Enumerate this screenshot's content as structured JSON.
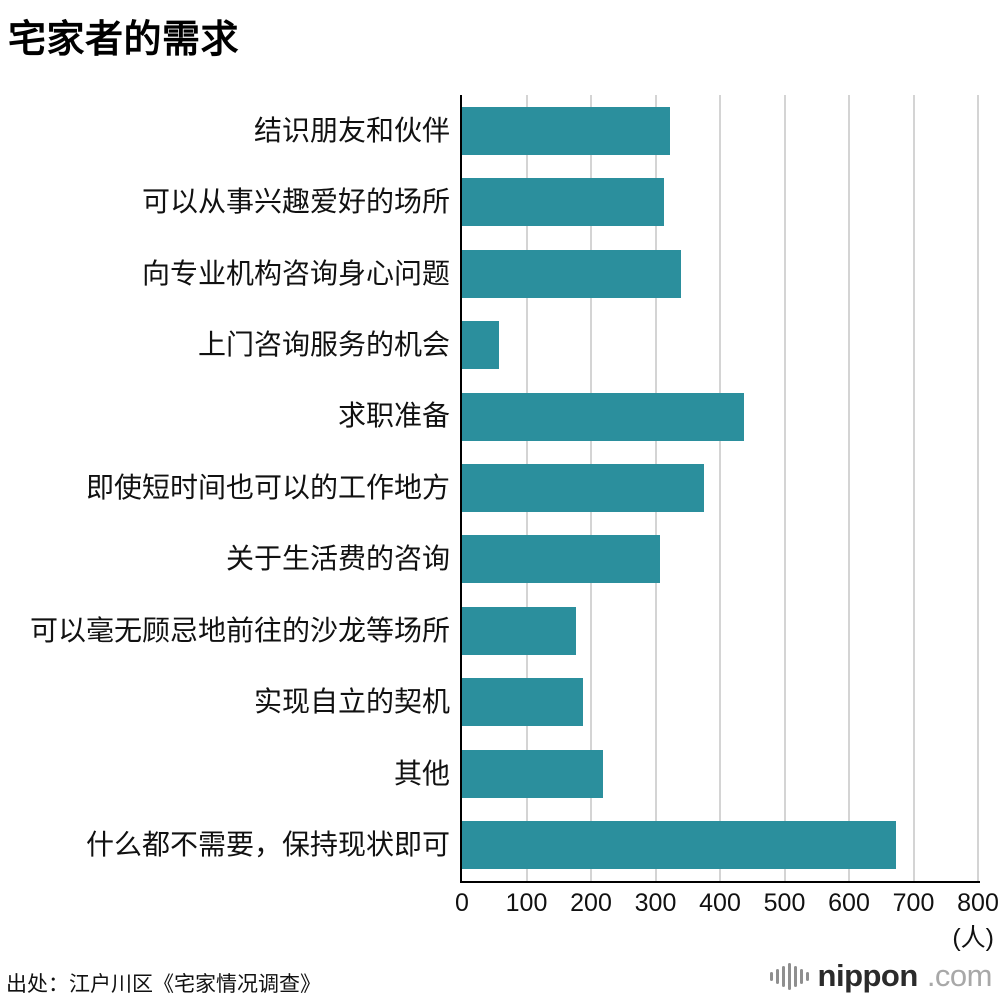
{
  "title": "宅家者的需求",
  "source": "出处：江户川区《宅家情况调查》",
  "logo": {
    "icon": "signal-bars-icon",
    "brand": "nippon",
    "suffix": ".com"
  },
  "chart_data": {
    "type": "bar",
    "orientation": "horizontal",
    "title": "宅家者的需求",
    "categories": [
      "结识朋友和伙伴",
      "可以从事兴趣爱好的场所",
      "向专业机构咨询身心问题",
      "上门咨询服务的机会",
      "求职准备",
      "即使短时间也可以的工作地方",
      "关于生活费的咨询",
      "可以毫无顾忌地前往的沙龙等场所",
      "实现自立的契机",
      "其他",
      "什么都不需要，保持现状即可"
    ],
    "values": [
      310,
      300,
      325,
      55,
      420,
      360,
      295,
      170,
      180,
      210,
      645
    ],
    "xlabel": "",
    "ylabel": "",
    "x_unit": "(人)",
    "xlim": [
      0,
      800
    ],
    "xticks": [
      0,
      100,
      200,
      300,
      400,
      500,
      600,
      700,
      800
    ],
    "grid": true,
    "legend": false,
    "bar_color": "#2b8f9d",
    "gridline_color": "#d4d4d4",
    "axis_color": "#000000"
  }
}
